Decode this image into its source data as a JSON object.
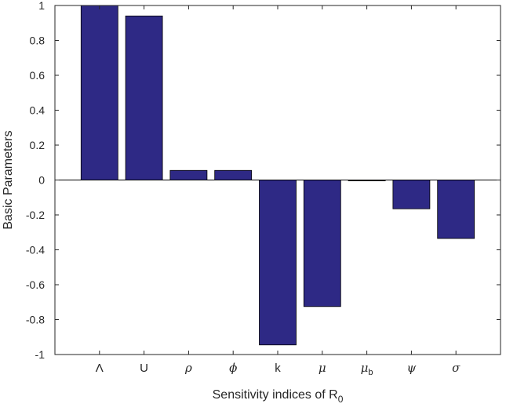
{
  "chart_data": {
    "type": "bar",
    "categories": [
      "Λ",
      "U",
      "ρ",
      "ϕ",
      "k",
      "μ",
      "μb",
      "ψ",
      "σ"
    ],
    "category_labels": [
      {
        "main": "Λ",
        "sub": "",
        "italic": false
      },
      {
        "main": "U",
        "sub": "",
        "italic": false
      },
      {
        "main": "ρ",
        "sub": "",
        "italic": true
      },
      {
        "main": "ϕ",
        "sub": "",
        "italic": true
      },
      {
        "main": "k",
        "sub": "",
        "italic": false
      },
      {
        "main": "μ",
        "sub": "",
        "italic": true
      },
      {
        "main": "μ",
        "sub": "b",
        "italic": true
      },
      {
        "main": "ψ",
        "sub": "",
        "italic": true
      },
      {
        "main": "σ",
        "sub": "",
        "italic": true
      }
    ],
    "values": [
      1.0,
      0.94,
      0.055,
      0.055,
      -0.945,
      -0.725,
      -0.005,
      -0.165,
      -0.335
    ],
    "title": "",
    "xlabel": "Sensitivity indices of R",
    "xlabel_sub": "0",
    "ylabel": "Basic Parameters",
    "ylim": [
      -1,
      1
    ],
    "yticks": [
      1,
      0.8,
      0.6,
      0.4,
      0.2,
      0,
      -0.2,
      -0.4,
      -0.6,
      -0.8,
      -1
    ],
    "ytick_labels": [
      "1",
      "0.8",
      "0.6",
      "0.4",
      "0.2",
      "0",
      "-0.2",
      "-0.4",
      "-0.6",
      "-0.8",
      "-1"
    ],
    "grid": false,
    "bar_color": "#2e2985",
    "bar_edge_color": "#000000"
  }
}
